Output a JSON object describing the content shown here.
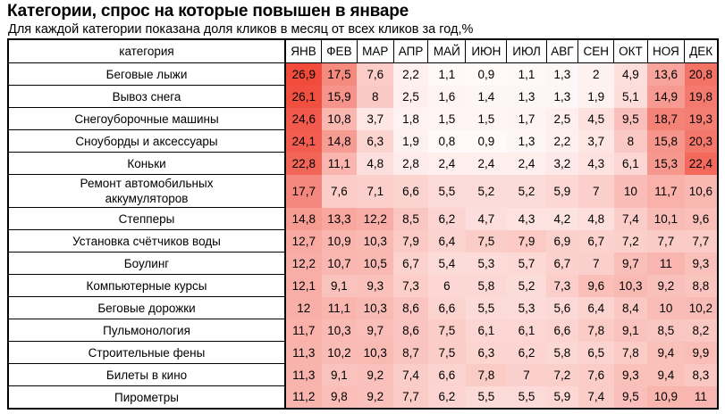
{
  "chart_data": {
    "type": "heatmap",
    "title": "Категории, спрос на которые повышен в январе",
    "subtitle": "Для каждой категории показана доля кликов в месяц от всех кликов за год,%",
    "row_header": "категория",
    "columns": [
      "ЯНВ",
      "ФЕВ",
      "МАР",
      "АПР",
      "МАЙ",
      "ИЮН",
      "ИЮЛ",
      "АВГ",
      "СЕН",
      "ОКТ",
      "НОЯ",
      "ДЕК"
    ],
    "rows": [
      {
        "category": "Беговые лыжи",
        "values": [
          "26,9",
          "17,5",
          "7,6",
          "2,2",
          "1,1",
          "0,9",
          "1,1",
          "1,3",
          "2",
          "4,9",
          "13,6",
          "20,8"
        ]
      },
      {
        "category": "Вывоз снега",
        "values": [
          "26,1",
          "15,9",
          "8",
          "2,5",
          "1,6",
          "1,4",
          "1,3",
          "1,3",
          "1,9",
          "5,1",
          "14,9",
          "19,8"
        ]
      },
      {
        "category": "Снегоуборочные машины",
        "values": [
          "24,6",
          "10,8",
          "3,7",
          "1,8",
          "1,5",
          "1,5",
          "1,7",
          "2,5",
          "4,5",
          "9,5",
          "18,7",
          "19,3"
        ]
      },
      {
        "category": "Сноуборды и аксессуары",
        "values": [
          "24,1",
          "14,8",
          "6,3",
          "1,9",
          "0,8",
          "0,9",
          "1,3",
          "2,2",
          "3,7",
          "8",
          "15,8",
          "20,3"
        ]
      },
      {
        "category": "Коньки",
        "values": [
          "22,8",
          "11,1",
          "4,8",
          "2,8",
          "2,4",
          "2,4",
          "2,4",
          "3,2",
          "4,3",
          "6,1",
          "15,3",
          "22,4"
        ]
      },
      {
        "category": "Ремонт автомобильных аккумуляторов",
        "values": [
          "17,7",
          "7,6",
          "7,1",
          "6,6",
          "5,5",
          "5,2",
          "5,2",
          "5,9",
          "7",
          "10",
          "11,7",
          "10,6"
        ]
      },
      {
        "category": "Степперы",
        "values": [
          "14,8",
          "13,3",
          "12,2",
          "8,5",
          "6,2",
          "4,7",
          "4,3",
          "4,2",
          "4,8",
          "7,4",
          "10,1",
          "9,6"
        ]
      },
      {
        "category": "Установка счётчиков воды",
        "values": [
          "12,7",
          "10,9",
          "10,3",
          "7,9",
          "6,4",
          "7,5",
          "7,9",
          "6,9",
          "6,7",
          "7,2",
          "7,7",
          "7,7"
        ]
      },
      {
        "category": "Боулинг",
        "values": [
          "12,2",
          "10,7",
          "10,5",
          "6,7",
          "5,4",
          "5,3",
          "5,7",
          "6,7",
          "7",
          "9,7",
          "11",
          "9,3"
        ]
      },
      {
        "category": "Компьютерные курсы",
        "values": [
          "12,1",
          "9,1",
          "9,3",
          "7,3",
          "6",
          "5,8",
          "5,2",
          "7,3",
          "9,6",
          "10,3",
          "9,2",
          "8,8"
        ]
      },
      {
        "category": "Беговые дорожки",
        "values": [
          "12",
          "11,1",
          "10,3",
          "8,6",
          "6,6",
          "5,5",
          "5,3",
          "5,6",
          "6,4",
          "8,4",
          "10",
          "10,2"
        ]
      },
      {
        "category": "Пульмонология",
        "values": [
          "11,7",
          "10,3",
          "9,7",
          "8,6",
          "7,5",
          "6,1",
          "6,1",
          "6,6",
          "7,8",
          "9,1",
          "8,5",
          "8,2"
        ]
      },
      {
        "category": "Строительные фены",
        "values": [
          "11,3",
          "10,2",
          "10,3",
          "8,7",
          "7,5",
          "6,3",
          "6,2",
          "5,8",
          "6,5",
          "7,8",
          "9,4",
          "9,9"
        ]
      },
      {
        "category": "Билеты в кино",
        "values": [
          "11,3",
          "9,1",
          "9,2",
          "7,4",
          "6,6",
          "7,8",
          "7",
          "7,2",
          "7,6",
          "9,3",
          "9,4",
          "8,3"
        ]
      },
      {
        "category": "Пирометры",
        "values": [
          "11,2",
          "9,8",
          "9,2",
          "7,7",
          "6,2",
          "5,5",
          "5,5",
          "5,9",
          "7,4",
          "9,5",
          "10,9",
          "11"
        ]
      }
    ],
    "color_low": "#ffffff",
    "color_high": "#f04a3a"
  }
}
